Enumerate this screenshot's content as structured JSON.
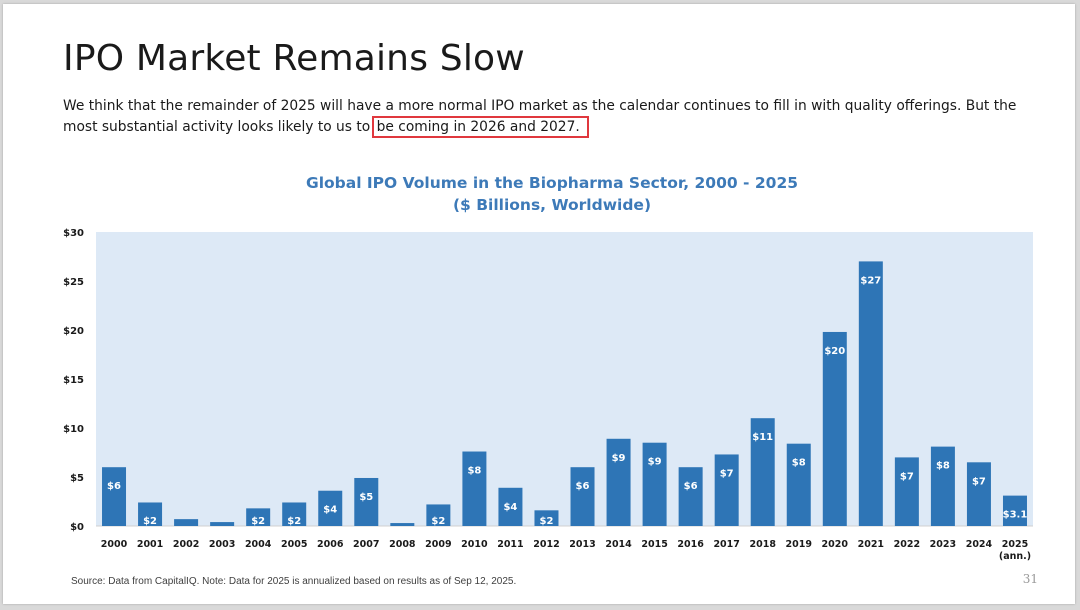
{
  "slide": {
    "title": "IPO Market Remains Slow",
    "body_before": "We think that the remainder of 2025 will have a more normal IPO market as the calendar continues to fill in with quality offerings. But the most substantial activity looks likely to us to ",
    "body_highlight": "be coming in 2026 and 2027.",
    "source": "Source: Data from CapitalIQ. Note: Data for 2025 is annualized based on results as of Sep 12, 2025.",
    "page_number": "31"
  },
  "chart_data": {
    "type": "bar",
    "title": "Global IPO Volume in the Biopharma Sector, 2000 - 2025",
    "subtitle": "($ Billions, Worldwide)",
    "xlabel": "",
    "ylabel": "",
    "ylim": [
      0,
      30
    ],
    "yticks": [
      0,
      5,
      10,
      15,
      20,
      25,
      30
    ],
    "ytick_labels": [
      "$0",
      "$5",
      "$10",
      "$15",
      "$20",
      "$25",
      "$30"
    ],
    "categories": [
      "2000",
      "2001",
      "2002",
      "2003",
      "2004",
      "2005",
      "2006",
      "2007",
      "2008",
      "2009",
      "2010",
      "2011",
      "2012",
      "2013",
      "2014",
      "2015",
      "2016",
      "2017",
      "2018",
      "2019",
      "2020",
      "2021",
      "2022",
      "2023",
      "2024",
      "2025 (ann.)"
    ],
    "values": [
      6.0,
      2.4,
      0.7,
      0.4,
      1.8,
      2.4,
      3.6,
      4.9,
      0.3,
      2.2,
      7.6,
      3.9,
      1.6,
      6.0,
      8.9,
      8.5,
      6.0,
      7.3,
      11.0,
      8.4,
      19.8,
      27.0,
      7.0,
      8.1,
      6.5,
      3.1
    ],
    "data_labels": [
      "$6",
      "$2",
      "",
      "",
      "$2",
      "$2",
      "$4",
      "$5",
      "",
      "$2",
      "$8",
      "$4",
      "$2",
      "$6",
      "$9",
      "$9",
      "$6",
      "$7",
      "$11",
      "$8",
      "$20",
      "$27",
      "$7",
      "$8",
      "$7",
      "$3.1"
    ],
    "colors": {
      "bar": "#2e75b6",
      "plot_background": "#dde9f6",
      "label": "#ffffff",
      "title": "#3d7ab8",
      "highlight_box": "#e0383e"
    },
    "grid": false,
    "legend": "none"
  }
}
